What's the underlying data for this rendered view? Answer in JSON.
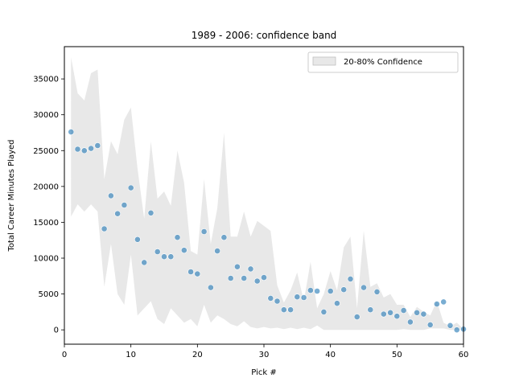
{
  "chart_data": {
    "type": "scatter",
    "title": "1989 - 2006: confidence band",
    "xlabel": "Pick #",
    "ylabel": "Total Career Minutes Played",
    "xlim": [
      0,
      60
    ],
    "ylim": [
      -2000,
      39500
    ],
    "xticks": [
      0,
      10,
      20,
      30,
      40,
      50,
      60
    ],
    "yticks": [
      0,
      5000,
      10000,
      15000,
      20000,
      25000,
      30000,
      35000
    ],
    "grid": false,
    "legend": {
      "position": "top-right",
      "entries": [
        "20-80% Confidence"
      ]
    },
    "colors": {
      "band": "#d9d9d9",
      "point": "#1f77b4"
    },
    "band": {
      "x": [
        1,
        2,
        3,
        4,
        5,
        6,
        7,
        8,
        9,
        10,
        11,
        12,
        13,
        14,
        15,
        16,
        17,
        18,
        19,
        20,
        21,
        22,
        23,
        24,
        25,
        26,
        27,
        28,
        29,
        30,
        31,
        32,
        33,
        34,
        35,
        36,
        37,
        38,
        39,
        40,
        41,
        42,
        43,
        44,
        45,
        46,
        47,
        48,
        49,
        50,
        51,
        52,
        53,
        54,
        55,
        56,
        57,
        58,
        59,
        60
      ],
      "lower": [
        15800,
        17500,
        16500,
        17500,
        16500,
        6000,
        12000,
        5000,
        3500,
        10500,
        2000,
        3000,
        4000,
        1500,
        800,
        3000,
        2000,
        1000,
        1500,
        500,
        3500,
        1000,
        2000,
        1500,
        800,
        500,
        1200,
        400,
        200,
        400,
        200,
        300,
        100,
        300,
        100,
        300,
        100,
        600,
        0,
        0,
        0,
        0,
        0,
        0,
        0,
        0,
        0,
        0,
        0,
        0,
        100,
        0,
        0,
        0,
        200,
        200,
        200,
        0,
        0,
        0
      ],
      "upper": [
        38000,
        33000,
        32000,
        35800,
        36300,
        21000,
        26300,
        24500,
        29300,
        31000,
        22500,
        15500,
        26300,
        18300,
        19300,
        17300,
        25000,
        20500,
        11000,
        10500,
        21000,
        12000,
        17000,
        27500,
        13000,
        13000,
        16500,
        13000,
        15200,
        14500,
        13800,
        6200,
        3800,
        5500,
        8000,
        4000,
        9500,
        3000,
        5000,
        8200,
        5500,
        11500,
        13000,
        3000,
        13800,
        6000,
        6500,
        4500,
        5000,
        3500,
        3500,
        1800,
        3200,
        2500,
        2000,
        4000,
        1000,
        500,
        1000,
        100
      ]
    },
    "points": {
      "x": [
        1,
        2,
        3,
        4,
        5,
        6,
        7,
        8,
        9,
        10,
        11,
        12,
        13,
        14,
        15,
        16,
        17,
        18,
        19,
        20,
        21,
        22,
        23,
        24,
        25,
        26,
        27,
        28,
        29,
        30,
        31,
        32,
        33,
        34,
        35,
        36,
        37,
        38,
        39,
        40,
        41,
        42,
        43,
        44,
        45,
        46,
        47,
        48,
        49,
        50,
        51,
        52,
        53,
        54,
        55,
        56,
        57,
        58,
        59,
        60
      ],
      "y": [
        27600,
        25200,
        25000,
        25300,
        25700,
        14100,
        18700,
        16200,
        17400,
        19800,
        12600,
        9400,
        16300,
        10900,
        10200,
        10200,
        12900,
        11100,
        8100,
        7800,
        13700,
        5900,
        11000,
        12900,
        7200,
        8800,
        7200,
        8500,
        6800,
        7300,
        4400,
        4000,
        2800,
        2800,
        4600,
        4500,
        5500,
        5400,
        2500,
        5400,
        3700,
        5600,
        7100,
        1800,
        5900,
        2800,
        5300,
        2200,
        2400,
        1900,
        2700,
        1100,
        2400,
        2200,
        700,
        3600,
        3900,
        600,
        0,
        100
      ]
    }
  }
}
